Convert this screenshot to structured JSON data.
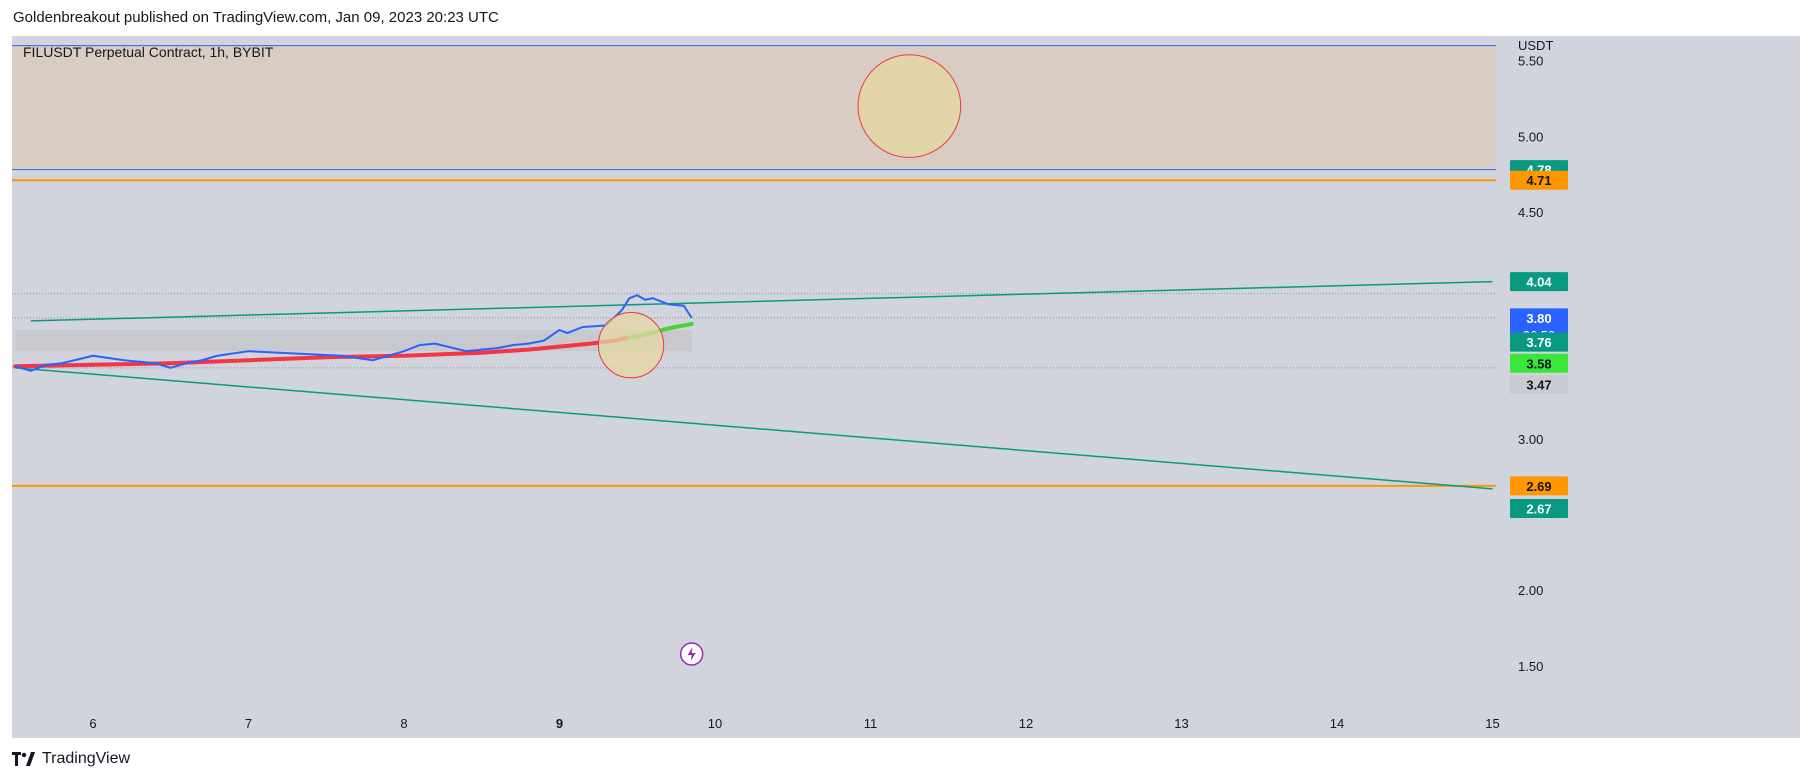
{
  "header": {
    "published_by": "Goldenbreakout published on TradingView.com, Jan 09, 2023 20:23 UTC"
  },
  "symbol": {
    "title": "FILUSDT Perpetual Contract, 1h, BYBIT"
  },
  "footer": {
    "brand": "TradingView"
  },
  "colors": {
    "background": "#d1d4dc",
    "zone_fill": "#d9ccc0",
    "blue_line": "#2962ff",
    "orange_line": "#ff9800",
    "teal_line": "#089981",
    "price_line": "#2962ff",
    "ma_red": "#f23645",
    "ma_green": "#4cd137",
    "circle_fill": "#e6d7a1",
    "circle_stroke": "#f23645"
  },
  "chart_data": {
    "type": "line",
    "currency": "USDT",
    "x_ticks": [
      "6",
      "7",
      "8",
      "9",
      "10",
      "11",
      "12",
      "13",
      "14",
      "15"
    ],
    "y_ticks": [
      "5.50",
      "5.00",
      "4.50",
      "3.00",
      "2.00",
      "1.50"
    ],
    "ylim": [
      1.4,
      5.65
    ],
    "price_series": {
      "name": "",
      "x": [
        5.5,
        5.6,
        5.7,
        5.8,
        6.0,
        6.2,
        6.4,
        6.5,
        6.6,
        6.7,
        6.8,
        7.0,
        7.2,
        7.4,
        7.6,
        7.8,
        7.9,
        8.0,
        8.1,
        8.2,
        8.4,
        8.6,
        8.7,
        8.8,
        8.9,
        9.0,
        9.05,
        9.15,
        9.3,
        9.4,
        9.45,
        9.5,
        9.55,
        9.6,
        9.7,
        9.8,
        9.85
      ],
      "y": [
        3.48,
        3.45,
        3.49,
        3.5,
        3.55,
        3.52,
        3.5,
        3.47,
        3.5,
        3.52,
        3.55,
        3.58,
        3.57,
        3.56,
        3.55,
        3.52,
        3.55,
        3.58,
        3.62,
        3.63,
        3.58,
        3.6,
        3.62,
        3.63,
        3.65,
        3.72,
        3.7,
        3.74,
        3.75,
        3.85,
        3.93,
        3.95,
        3.92,
        3.93,
        3.89,
        3.88,
        3.8
      ]
    },
    "ma_series": {
      "name": "",
      "x": [
        5.5,
        6.0,
        6.5,
        7.0,
        7.5,
        8.0,
        8.5,
        8.8,
        9.0,
        9.2,
        9.35,
        9.45,
        9.55,
        9.7,
        9.85
      ],
      "y": [
        3.48,
        3.49,
        3.5,
        3.52,
        3.54,
        3.55,
        3.57,
        3.59,
        3.61,
        3.63,
        3.65,
        3.67,
        3.69,
        3.73,
        3.76
      ],
      "transition_x": 9.45
    },
    "resistance_zone": {
      "y_top": 5.6,
      "y_bottom": 4.78
    },
    "horizontal_lines": [
      {
        "y": 5.6,
        "color": "#2962ff"
      },
      {
        "y": 4.78,
        "color": "#2962ff"
      },
      {
        "y": 4.71,
        "color": "#ff9800"
      },
      {
        "y": 2.69,
        "color": "#ff9800"
      }
    ],
    "dotted_lines": [
      3.96,
      3.8,
      3.47
    ],
    "trendlines": [
      {
        "x1": 5.6,
        "y1": 3.78,
        "x2": 15.0,
        "y2": 4.04,
        "color": "#089981"
      },
      {
        "x1": 5.5,
        "y1": 3.47,
        "x2": 15.0,
        "y2": 2.67,
        "color": "#089981"
      }
    ],
    "grey_band": {
      "x1": 5.5,
      "x2": 9.85,
      "y_top": 3.72,
      "y_bottom": 3.58
    },
    "circles": [
      {
        "cx": 11.25,
        "cy": 5.2,
        "r_x": 0.33
      },
      {
        "cx": 9.46,
        "cy": 3.62,
        "r_x": 0.21
      }
    ],
    "price_labels": [
      {
        "value": "4.78",
        "y": 4.78,
        "bg": "#089981",
        "fg": "#ffffff"
      },
      {
        "value": "4.71",
        "y": 4.71,
        "bg": "#ff9800",
        "fg": "#131722"
      },
      {
        "value": "4.04",
        "y": 4.04,
        "bg": "#089981",
        "fg": "#ffffff"
      },
      {
        "value": "3.80",
        "sub": "36:50",
        "y": 3.8,
        "bg": "#2962ff",
        "fg": "#ffffff"
      },
      {
        "value": "3.76",
        "y": 3.64,
        "bg": "#089981",
        "fg": "#ffffff"
      },
      {
        "value": "3.58",
        "y": 3.5,
        "bg": "#39e639",
        "fg": "#131722"
      },
      {
        "value": "3.47",
        "y": 3.36,
        "bg": "#c8cbd2",
        "fg": "#131722"
      },
      {
        "value": "2.69",
        "y": 2.69,
        "bg": "#ff9800",
        "fg": "#131722"
      },
      {
        "value": "2.67",
        "y": 2.54,
        "bg": "#089981",
        "fg": "#ffffff"
      }
    ],
    "event_marker_x": 9.85
  }
}
